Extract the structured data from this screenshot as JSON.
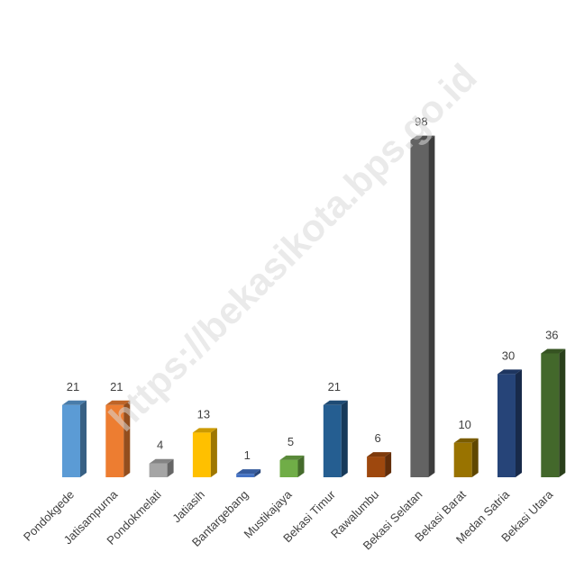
{
  "chart_data": {
    "type": "bar",
    "style": "3d-column",
    "categories": [
      "Pondokgede",
      "Jatisampurna",
      "Pondokmelati",
      "Jatiasih",
      "Bantargebang",
      "Mustikajaya",
      "Bekasi Timur",
      "Rawalumbu",
      "Bekasi Selatan",
      "Bekasi Barat",
      "Medan Satria",
      "Bekasi Utara"
    ],
    "values": [
      21,
      21,
      4,
      13,
      1,
      5,
      21,
      6,
      98,
      10,
      30,
      36
    ],
    "colors": [
      "#5b9bd5",
      "#ed7d31",
      "#a5a5a5",
      "#ffc000",
      "#4472c4",
      "#70ad47",
      "#255e91",
      "#9e480e",
      "#636363",
      "#997300",
      "#264478",
      "#43682b"
    ],
    "title": "",
    "xlabel": "",
    "ylabel": "",
    "ylim": [
      0,
      100
    ],
    "grid": false,
    "legend": "none",
    "data_labels": true
  },
  "watermark": "https://bekasikota.bps.go.id"
}
